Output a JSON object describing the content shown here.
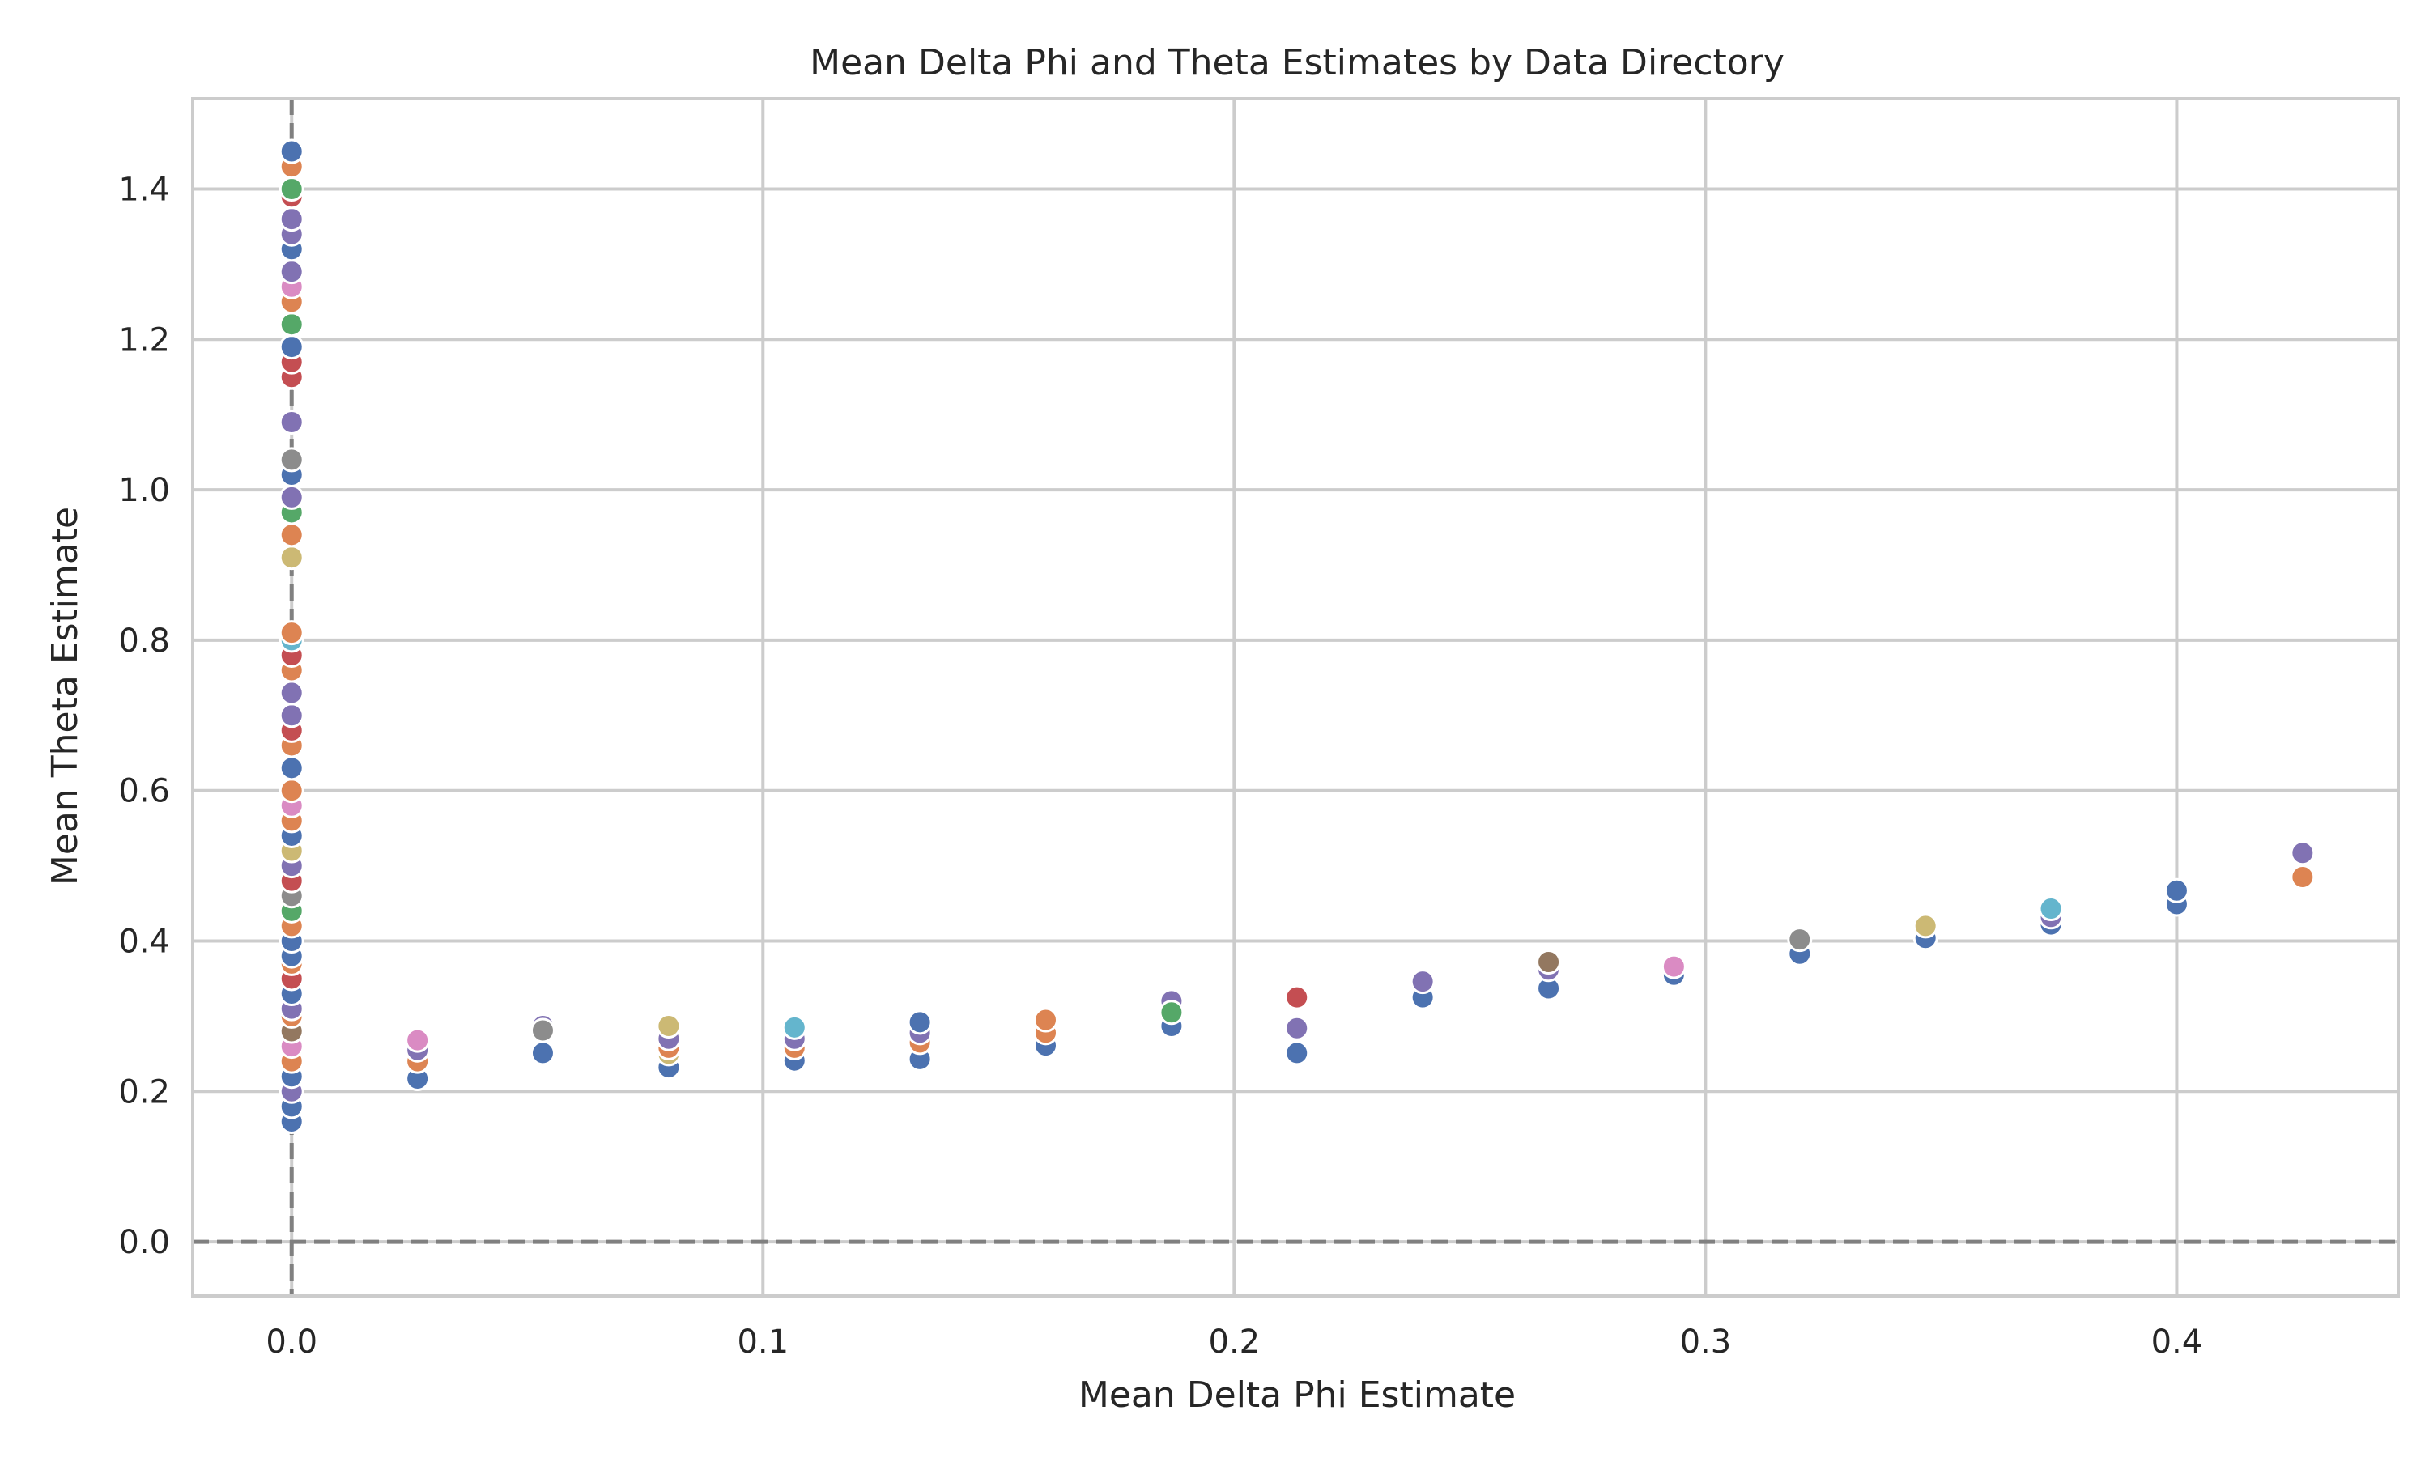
{
  "chart_data": {
    "type": "scatter",
    "title": "Mean Delta Phi and Theta Estimates by Data Directory",
    "xlabel": "Mean Delta Phi Estimate",
    "ylabel": "Mean Theta Estimate",
    "xlim": [
      -0.021,
      0.447
    ],
    "ylim": [
      -0.072,
      1.52
    ],
    "xticks": [
      0.0,
      0.1,
      0.2,
      0.3,
      0.4
    ],
    "xtick_labels": [
      "0.0",
      "0.1",
      "0.2",
      "0.3",
      "0.4"
    ],
    "yticks": [
      0.0,
      0.2,
      0.4,
      0.6,
      0.8,
      1.0,
      1.2,
      1.4
    ],
    "ytick_labels": [
      "0.0",
      "0.2",
      "0.4",
      "0.6",
      "0.8",
      "1.0",
      "1.2",
      "1.4"
    ],
    "grid": true,
    "legend": "none",
    "reference_lines": {
      "x": 0.0,
      "y": 0.0,
      "style": "dashed",
      "color": "#808080"
    },
    "colors": {
      "blue": "#4c72b0",
      "orange": "#dd8452",
      "green": "#55a868",
      "red": "#c44e52",
      "purple": "#8172b3",
      "brown": "#937860",
      "pink": "#da8bc3",
      "gray": "#8c8c8c",
      "olive": "#ccb974",
      "cyan": "#64b5cd"
    },
    "points": [
      {
        "x": 0.0,
        "y": 0.16,
        "color": "blue"
      },
      {
        "x": 0.0,
        "y": 0.18,
        "color": "blue"
      },
      {
        "x": 0.0,
        "y": 0.2,
        "color": "purple"
      },
      {
        "x": 0.0,
        "y": 0.22,
        "color": "blue"
      },
      {
        "x": 0.0,
        "y": 0.24,
        "color": "orange"
      },
      {
        "x": 0.0,
        "y": 0.26,
        "color": "pink"
      },
      {
        "x": 0.0,
        "y": 0.28,
        "color": "brown"
      },
      {
        "x": 0.0,
        "y": 0.3,
        "color": "orange"
      },
      {
        "x": 0.0,
        "y": 0.31,
        "color": "purple"
      },
      {
        "x": 0.0,
        "y": 0.33,
        "color": "blue"
      },
      {
        "x": 0.0,
        "y": 0.35,
        "color": "red"
      },
      {
        "x": 0.0,
        "y": 0.37,
        "color": "orange"
      },
      {
        "x": 0.0,
        "y": 0.38,
        "color": "blue"
      },
      {
        "x": 0.0,
        "y": 0.4,
        "color": "blue"
      },
      {
        "x": 0.0,
        "y": 0.42,
        "color": "orange"
      },
      {
        "x": 0.0,
        "y": 0.44,
        "color": "green"
      },
      {
        "x": 0.0,
        "y": 0.46,
        "color": "gray"
      },
      {
        "x": 0.0,
        "y": 0.48,
        "color": "red"
      },
      {
        "x": 0.0,
        "y": 0.5,
        "color": "purple"
      },
      {
        "x": 0.0,
        "y": 0.52,
        "color": "olive"
      },
      {
        "x": 0.0,
        "y": 0.54,
        "color": "blue"
      },
      {
        "x": 0.0,
        "y": 0.56,
        "color": "orange"
      },
      {
        "x": 0.0,
        "y": 0.58,
        "color": "pink"
      },
      {
        "x": 0.0,
        "y": 0.6,
        "color": "orange"
      },
      {
        "x": 0.0,
        "y": 0.63,
        "color": "blue"
      },
      {
        "x": 0.0,
        "y": 0.66,
        "color": "orange"
      },
      {
        "x": 0.0,
        "y": 0.68,
        "color": "red"
      },
      {
        "x": 0.0,
        "y": 0.7,
        "color": "purple"
      },
      {
        "x": 0.0,
        "y": 0.73,
        "color": "purple"
      },
      {
        "x": 0.0,
        "y": 0.76,
        "color": "orange"
      },
      {
        "x": 0.0,
        "y": 0.78,
        "color": "red"
      },
      {
        "x": 0.0,
        "y": 0.8,
        "color": "cyan"
      },
      {
        "x": 0.0,
        "y": 0.81,
        "color": "orange"
      },
      {
        "x": 0.0,
        "y": 0.91,
        "color": "olive"
      },
      {
        "x": 0.0,
        "y": 0.94,
        "color": "orange"
      },
      {
        "x": 0.0,
        "y": 0.97,
        "color": "green"
      },
      {
        "x": 0.0,
        "y": 0.99,
        "color": "purple"
      },
      {
        "x": 0.0,
        "y": 1.02,
        "color": "blue"
      },
      {
        "x": 0.0,
        "y": 1.04,
        "color": "gray"
      },
      {
        "x": 0.0,
        "y": 1.09,
        "color": "purple"
      },
      {
        "x": 0.0,
        "y": 1.15,
        "color": "red"
      },
      {
        "x": 0.0,
        "y": 1.17,
        "color": "red"
      },
      {
        "x": 0.0,
        "y": 1.19,
        "color": "blue"
      },
      {
        "x": 0.0,
        "y": 1.22,
        "color": "green"
      },
      {
        "x": 0.0,
        "y": 1.25,
        "color": "orange"
      },
      {
        "x": 0.0,
        "y": 1.27,
        "color": "pink"
      },
      {
        "x": 0.0,
        "y": 1.29,
        "color": "purple"
      },
      {
        "x": 0.0,
        "y": 1.32,
        "color": "blue"
      },
      {
        "x": 0.0,
        "y": 1.34,
        "color": "purple"
      },
      {
        "x": 0.0,
        "y": 1.36,
        "color": "purple"
      },
      {
        "x": 0.0,
        "y": 1.39,
        "color": "red"
      },
      {
        "x": 0.0,
        "y": 1.4,
        "color": "green"
      },
      {
        "x": 0.0,
        "y": 1.43,
        "color": "orange"
      },
      {
        "x": 0.0,
        "y": 1.45,
        "color": "blue"
      },
      {
        "x": 0.0267,
        "y": 0.217,
        "color": "blue"
      },
      {
        "x": 0.0267,
        "y": 0.24,
        "color": "orange"
      },
      {
        "x": 0.0267,
        "y": 0.255,
        "color": "purple"
      },
      {
        "x": 0.0267,
        "y": 0.268,
        "color": "pink"
      },
      {
        "x": 0.0533,
        "y": 0.251,
        "color": "blue"
      },
      {
        "x": 0.0533,
        "y": 0.287,
        "color": "purple"
      },
      {
        "x": 0.0533,
        "y": 0.281,
        "color": "gray"
      },
      {
        "x": 0.08,
        "y": 0.232,
        "color": "blue"
      },
      {
        "x": 0.08,
        "y": 0.25,
        "color": "olive"
      },
      {
        "x": 0.08,
        "y": 0.258,
        "color": "orange"
      },
      {
        "x": 0.08,
        "y": 0.27,
        "color": "purple"
      },
      {
        "x": 0.08,
        "y": 0.287,
        "color": "olive"
      },
      {
        "x": 0.1067,
        "y": 0.241,
        "color": "blue"
      },
      {
        "x": 0.1067,
        "y": 0.258,
        "color": "orange"
      },
      {
        "x": 0.1067,
        "y": 0.27,
        "color": "purple"
      },
      {
        "x": 0.1067,
        "y": 0.285,
        "color": "cyan"
      },
      {
        "x": 0.1333,
        "y": 0.243,
        "color": "blue"
      },
      {
        "x": 0.1333,
        "y": 0.265,
        "color": "orange"
      },
      {
        "x": 0.1333,
        "y": 0.278,
        "color": "purple"
      },
      {
        "x": 0.1333,
        "y": 0.292,
        "color": "blue"
      },
      {
        "x": 0.16,
        "y": 0.261,
        "color": "blue"
      },
      {
        "x": 0.16,
        "y": 0.278,
        "color": "orange"
      },
      {
        "x": 0.16,
        "y": 0.295,
        "color": "orange"
      },
      {
        "x": 0.1867,
        "y": 0.287,
        "color": "blue"
      },
      {
        "x": 0.1867,
        "y": 0.32,
        "color": "purple"
      },
      {
        "x": 0.1867,
        "y": 0.305,
        "color": "green"
      },
      {
        "x": 0.2133,
        "y": 0.251,
        "color": "blue"
      },
      {
        "x": 0.2133,
        "y": 0.284,
        "color": "purple"
      },
      {
        "x": 0.2133,
        "y": 0.325,
        "color": "red"
      },
      {
        "x": 0.24,
        "y": 0.325,
        "color": "blue"
      },
      {
        "x": 0.24,
        "y": 0.346,
        "color": "purple"
      },
      {
        "x": 0.2667,
        "y": 0.337,
        "color": "blue"
      },
      {
        "x": 0.2667,
        "y": 0.362,
        "color": "purple"
      },
      {
        "x": 0.2667,
        "y": 0.372,
        "color": "brown"
      },
      {
        "x": 0.2933,
        "y": 0.355,
        "color": "blue"
      },
      {
        "x": 0.2933,
        "y": 0.368,
        "color": "purple"
      },
      {
        "x": 0.2933,
        "y": 0.366,
        "color": "pink"
      },
      {
        "x": 0.32,
        "y": 0.383,
        "color": "blue"
      },
      {
        "x": 0.32,
        "y": 0.402,
        "color": "gray"
      },
      {
        "x": 0.3467,
        "y": 0.404,
        "color": "blue"
      },
      {
        "x": 0.3467,
        "y": 0.42,
        "color": "olive"
      },
      {
        "x": 0.3733,
        "y": 0.422,
        "color": "blue"
      },
      {
        "x": 0.3733,
        "y": 0.432,
        "color": "purple"
      },
      {
        "x": 0.3733,
        "y": 0.443,
        "color": "cyan"
      },
      {
        "x": 0.4,
        "y": 0.449,
        "color": "blue"
      },
      {
        "x": 0.4,
        "y": 0.467,
        "color": "blue"
      },
      {
        "x": 0.4267,
        "y": 0.485,
        "color": "orange"
      },
      {
        "x": 0.4267,
        "y": 0.517,
        "color": "purple"
      }
    ]
  }
}
